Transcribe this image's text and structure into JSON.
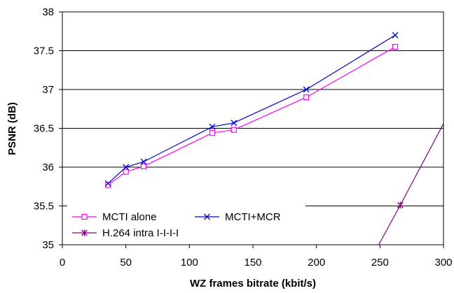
{
  "chart_data": {
    "type": "line",
    "xlabel": "WZ frames bitrate (kbit/s)",
    "ylabel": "PSNR (dB)",
    "xlim": [
      0,
      300
    ],
    "ylim": [
      35,
      38
    ],
    "x_ticks": [
      "0",
      "50",
      "100",
      "150",
      "200",
      "250",
      "300"
    ],
    "y_ticks": [
      "35",
      "35.5",
      "36",
      "36.5",
      "37",
      "37.5",
      "38"
    ],
    "grid": "horizontal",
    "legend_position": "bottom-left",
    "series": [
      {
        "name": "MCTI alone",
        "color": "#ff00ff",
        "marker": "square",
        "x": [
          36,
          50,
          64,
          118,
          135,
          192,
          262
        ],
        "y": [
          35.77,
          35.94,
          36.01,
          36.44,
          36.48,
          36.9,
          37.55
        ]
      },
      {
        "name": "MCTI+MCR",
        "color": "#0000cc",
        "marker": "x",
        "x": [
          36,
          50,
          64,
          118,
          135,
          192,
          262
        ],
        "y": [
          35.79,
          36.0,
          36.07,
          36.52,
          36.57,
          37.0,
          37.7
        ]
      },
      {
        "name": "H.264 intra I-I-I-I",
        "color": "#800080",
        "marker": "asterisk",
        "x": [
          249,
          266,
          300
        ],
        "y": [
          35.0,
          35.51,
          36.56
        ]
      }
    ]
  }
}
